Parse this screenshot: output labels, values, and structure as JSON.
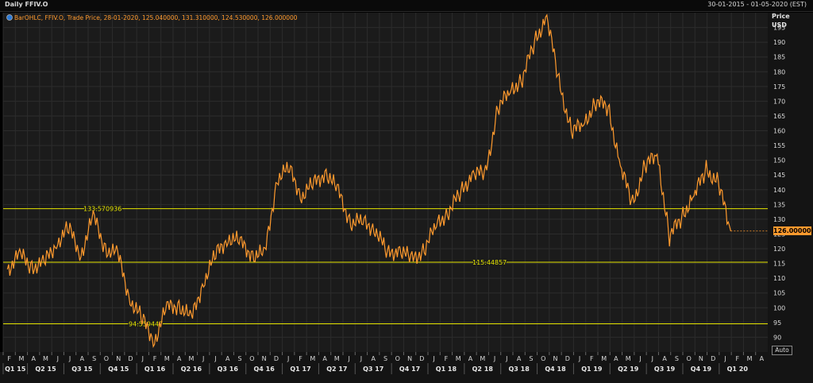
{
  "window": {
    "title": "Daily FFIV.O",
    "date_range": "30-01-2015 - 01-05-2020 (EST)"
  },
  "legend_text": "BarOHLC, FFIV.O, Trade Price, 28-01-2020, 125.040000, 131.310000, 124.530000, 126.000000",
  "y_axis_title": [
    "Price",
    "USD"
  ],
  "auto_button": "Auto",
  "colors": {
    "price_line": "#ff9a2e",
    "hline": "#e6e600",
    "grid": "#2c2c2c",
    "background": "#1b1b1b"
  },
  "chart_data": {
    "type": "line",
    "title": "Daily FFIV.O",
    "ylabel": "Price USD",
    "ylim": [
      85,
      200
    ],
    "x": [
      "2015-02",
      "2015-03",
      "2015-04",
      "2015-05",
      "2015-06",
      "2015-07",
      "2015-08",
      "2015-09",
      "2015-10",
      "2015-11",
      "2015-12",
      "2016-01",
      "2016-02",
      "2016-03",
      "2016-04",
      "2016-05",
      "2016-06",
      "2016-07",
      "2016-08",
      "2016-09",
      "2016-10",
      "2016-11",
      "2016-12",
      "2017-01",
      "2017-02",
      "2017-03",
      "2017-04",
      "2017-05",
      "2017-06",
      "2017-07",
      "2017-08",
      "2017-09",
      "2017-10",
      "2017-11",
      "2017-12",
      "2018-01",
      "2018-02",
      "2018-03",
      "2018-04",
      "2018-05",
      "2018-06",
      "2018-07",
      "2018-08",
      "2018-09",
      "2018-10",
      "2018-11",
      "2018-12",
      "2019-01",
      "2019-02",
      "2019-03",
      "2019-04",
      "2019-05",
      "2019-06",
      "2019-07",
      "2019-08",
      "2019-09",
      "2019-10",
      "2019-11",
      "2019-12",
      "2020-01"
    ],
    "series": [
      {
        "values": [
          113,
          118,
          114,
          115,
          122,
          127,
          118,
          131,
          120,
          118,
          103,
          96,
          89,
          100,
          101,
          96,
          109,
          118,
          124,
          122,
          118,
          118,
          144,
          147,
          138,
          142,
          146,
          139,
          129,
          129,
          127,
          118,
          120,
          116,
          120,
          128,
          133,
          139,
          146,
          145,
          168,
          173,
          178,
          190,
          199,
          176,
          160,
          162,
          170,
          168,
          148,
          135,
          148,
          152,
          124,
          131,
          138,
          147,
          142,
          126
        ]
      }
    ],
    "hlines": [
      133.570936,
      115.44857,
      94.559447
    ],
    "hline_labels": [
      "133.570936",
      "115.44857",
      "94.559447"
    ],
    "last_value_label": "126.000000",
    "y_ticks": [
      90,
      95,
      100,
      105,
      110,
      115,
      120,
      125,
      130,
      135,
      140,
      145,
      150,
      155,
      160,
      165,
      170,
      175,
      180,
      185,
      190,
      195
    ],
    "month_labels": [
      "F",
      "M",
      "A",
      "M",
      "J",
      "J",
      "A",
      "S",
      "O",
      "N",
      "D",
      "J",
      "F",
      "M",
      "A",
      "M",
      "J",
      "J",
      "A",
      "S",
      "O",
      "N",
      "D",
      "J",
      "F",
      "M",
      "A",
      "M",
      "J",
      "J",
      "A",
      "S",
      "O",
      "N",
      "D",
      "J",
      "F",
      "M",
      "A",
      "M",
      "J",
      "J",
      "A",
      "S",
      "O",
      "N",
      "D",
      "J",
      "F",
      "M",
      "A",
      "M",
      "J",
      "J",
      "A",
      "S",
      "O",
      "N",
      "D",
      "J",
      "F",
      "M",
      "A"
    ],
    "quarter_labels": [
      "Q1 15",
      "Q2 15",
      "Q3 15",
      "Q4 15",
      "Q1 16",
      "Q2 16",
      "Q3 16",
      "Q4 16",
      "Q1 17",
      "Q2 17",
      "Q3 17",
      "Q4 17",
      "Q1 18",
      "Q2 18",
      "Q3 18",
      "Q4 18",
      "Q1 19",
      "Q2 19",
      "Q3 19",
      "Q4 19",
      "Q1 20"
    ]
  }
}
